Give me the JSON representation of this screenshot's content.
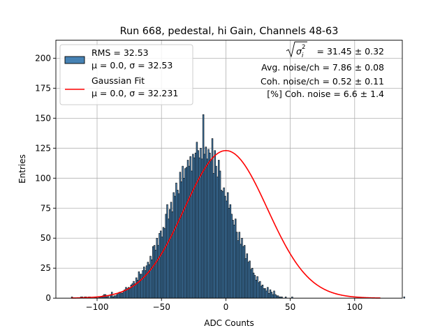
{
  "chart_data": {
    "type": "bar",
    "title": "Run 668, pedestal, hi Gain, Channels 48-63",
    "xlabel": "ADC Counts",
    "ylabel": "Entries",
    "xlim": [
      -132,
      137
    ],
    "ylim": [
      0,
      215
    ],
    "xticks": [
      -100,
      -50,
      0,
      50,
      100
    ],
    "yticks": [
      0,
      25,
      50,
      75,
      100,
      125,
      150,
      175,
      200
    ],
    "grid": true,
    "legend_position": "top-left",
    "histogram": {
      "name": "RMS = 32.53",
      "name_line2": "μ = 0.0, σ = 32.53",
      "color": "#4682b4",
      "edgecolor": "#000000",
      "x_start": -120,
      "bin_width": 1,
      "values": [
        1,
        0,
        0,
        0,
        0,
        0,
        0,
        1,
        1,
        0,
        1,
        1,
        0,
        1,
        1,
        0,
        0,
        0,
        1,
        1,
        0,
        1,
        1,
        1,
        2,
        3,
        3,
        1,
        2,
        0,
        3,
        5,
        1,
        2,
        2,
        3,
        4,
        5,
        5,
        4,
        6,
        7,
        9,
        8,
        9,
        8,
        11,
        12,
        14,
        12,
        17,
        15,
        22,
        20,
        20,
        23,
        26,
        23,
        27,
        30,
        28,
        35,
        32,
        43,
        44,
        40,
        50,
        44,
        54,
        56,
        51,
        59,
        58,
        70,
        78,
        66,
        74,
        80,
        72,
        88,
        85,
        96,
        90,
        87,
        105,
        97,
        110,
        100,
        108,
        109,
        115,
        110,
        118,
        106,
        120,
        117,
        121,
        130,
        123,
        117,
        125,
        116,
        153,
        120,
        126,
        116,
        124,
        121,
        115,
        133,
        104,
        123,
        110,
        101,
        115,
        106,
        90,
        89,
        92,
        85,
        81,
        88,
        75,
        78,
        70,
        65,
        61,
        66,
        55,
        48,
        55,
        45,
        50,
        43,
        44,
        33,
        37,
        30,
        31,
        24,
        25,
        21,
        19,
        15,
        18,
        13,
        14,
        10,
        11,
        8,
        8,
        6,
        9,
        4,
        7,
        5,
        3,
        6,
        3,
        2,
        2,
        1,
        1,
        1,
        0,
        0,
        1,
        0,
        0,
        0,
        0,
        1,
        0,
        0,
        0,
        0,
        0,
        0,
        0,
        0,
        0,
        0,
        0,
        0,
        0,
        0,
        0,
        0,
        0,
        0,
        0,
        0,
        0,
        0,
        0,
        0,
        0,
        0,
        0,
        0,
        0,
        0,
        0,
        0,
        0,
        0,
        0,
        0,
        0,
        0,
        0,
        0,
        0,
        0,
        0,
        0,
        0,
        0,
        0,
        0,
        0,
        0,
        0,
        0,
        0,
        0,
        0,
        0,
        0,
        0,
        0,
        0,
        0,
        0,
        0,
        0,
        0,
        0,
        0,
        0,
        0,
        0,
        0,
        0,
        0,
        0,
        0,
        0,
        0,
        0,
        0,
        0,
        0,
        0,
        0,
        0,
        0,
        0,
        1
      ]
    },
    "fit": {
      "name": "Gaussian Fit",
      "name_line2": "μ = 0.0, σ = 32.231",
      "color": "#ff0000",
      "mu": 0.0,
      "sigma": 32.231,
      "amplitude": 123,
      "x_range": [
        -120,
        120
      ]
    },
    "annotations": {
      "line1_value": "= 31.45 ± 0.32",
      "line2": "Avg. noise/ch = 7.86 ± 0.08",
      "line3": "Coh. noise/ch = 0.52 ± 0.11",
      "line4": "[%] Coh. noise = 6.6 ± 1.4"
    }
  }
}
